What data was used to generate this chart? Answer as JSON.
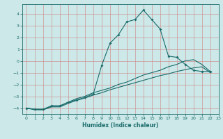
{
  "x_main": [
    0,
    1,
    2,
    3,
    4,
    5,
    6,
    7,
    8,
    9,
    10,
    11,
    12,
    13,
    14,
    15,
    16,
    17,
    18,
    19,
    20,
    21,
    22
  ],
  "y_main": [
    -4.0,
    -4.1,
    -4.1,
    -3.8,
    -3.8,
    -3.5,
    -3.3,
    -3.1,
    -2.8,
    -0.4,
    1.5,
    2.2,
    3.3,
    3.5,
    4.3,
    3.5,
    2.7,
    0.4,
    0.3,
    -0.3,
    -0.8,
    -0.9,
    -0.9
  ],
  "x_upper": [
    0,
    1,
    2,
    3,
    4,
    5,
    6,
    7,
    8,
    9,
    10,
    11,
    12,
    13,
    14,
    15,
    16,
    17,
    18,
    19,
    20,
    21,
    22
  ],
  "y_upper": [
    -4.0,
    -4.1,
    -4.1,
    -3.85,
    -3.85,
    -3.5,
    -3.2,
    -3.0,
    -2.7,
    -2.5,
    -2.3,
    -2.0,
    -1.8,
    -1.5,
    -1.2,
    -1.0,
    -0.8,
    -0.5,
    -0.3,
    0.0,
    0.1,
    -0.3,
    -0.9
  ],
  "x_lower": [
    0,
    1,
    2,
    3,
    4,
    5,
    6,
    7,
    8,
    9,
    10,
    11,
    12,
    13,
    14,
    15,
    16,
    17,
    18,
    19,
    20,
    21,
    22
  ],
  "y_lower": [
    -4.0,
    -4.15,
    -4.15,
    -3.9,
    -3.9,
    -3.6,
    -3.35,
    -3.15,
    -2.9,
    -2.7,
    -2.45,
    -2.25,
    -2.05,
    -1.85,
    -1.65,
    -1.45,
    -1.25,
    -1.1,
    -0.9,
    -0.75,
    -0.6,
    -0.5,
    -1.0
  ],
  "xlabel": "Humidex (Indice chaleur)",
  "ylim": [
    -4.5,
    4.8
  ],
  "xlim": [
    -0.5,
    23
  ],
  "yticks": [
    -4,
    -3,
    -2,
    -1,
    0,
    1,
    2,
    3,
    4
  ],
  "xticks": [
    0,
    1,
    2,
    3,
    4,
    5,
    6,
    7,
    8,
    9,
    10,
    11,
    12,
    13,
    14,
    15,
    16,
    17,
    18,
    19,
    20,
    21,
    22,
    23
  ],
  "bg_color": "#cce8e8",
  "grid_color": "#d08080",
  "line_color": "#1a6b6b"
}
